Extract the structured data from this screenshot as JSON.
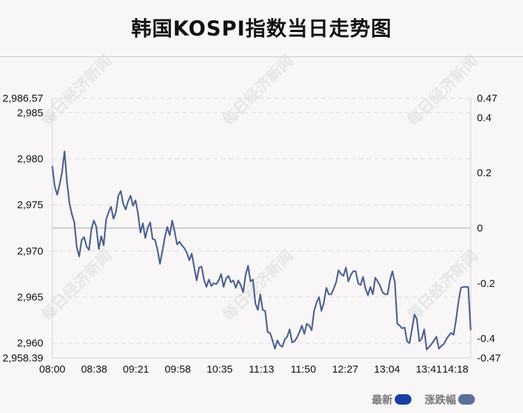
{
  "title": "韩国KOSPI指数当日走势图",
  "watermark": "每日经济新闻",
  "legend": [
    {
      "label": "最新",
      "color": "#1a3fa0"
    },
    {
      "label": "涨跌幅",
      "color": "#5b6f9c"
    }
  ],
  "chart_data": {
    "type": "line",
    "title": "韩国KOSPI指数当日走势图",
    "x_tick_labels": [
      "08:00",
      "08:38",
      "09:21",
      "09:58",
      "10:35",
      "11:13",
      "11:50",
      "12:27",
      "13:04",
      "13:41",
      "14:18"
    ],
    "y_left": {
      "max_label": "2,986.57",
      "min_label": "2,958.39",
      "ticks": [
        "2,985",
        "2,980",
        "2,975",
        "2,970",
        "2,965",
        "2,960"
      ],
      "range": [
        2958.39,
        2986.57
      ]
    },
    "y_right": {
      "max_label": "0.47",
      "min_label": "-0.47",
      "ticks": [
        "0.4",
        "0.2",
        "0",
        "-0.2",
        "-0.4"
      ],
      "range": [
        -0.47,
        0.47
      ]
    },
    "reference_value": 2972.48,
    "grid": "dashed horizontal",
    "line_color": "#4a5f8f",
    "series": [
      {
        "values": [
          2979.2,
          2977.0,
          2976.1,
          2977.2,
          2978.6,
          2980.8,
          2977.5,
          2975.2,
          2974.0,
          2973.1,
          2970.4,
          2969.4,
          2971.2,
          2971.5,
          2970.5,
          2970.1,
          2972.4,
          2973.3,
          2972.6,
          2970.2,
          2971.6,
          2970.6,
          2973.4,
          2974.2,
          2974.8,
          2973.5,
          2974.2,
          2976.0,
          2976.5,
          2975.1,
          2974.5,
          2975.4,
          2976.0,
          2974.9,
          2975.5,
          2974.1,
          2972.0,
          2973.0,
          2971.4,
          2972.5,
          2973.1,
          2971.3,
          2971.2,
          2970.1,
          2968.6,
          2970.0,
          2971.5,
          2972.6,
          2971.7,
          2973.3,
          2972.1,
          2970.7,
          2971.0,
          2970.6,
          2970.3,
          2969.8,
          2969.0,
          2969.7,
          2968.2,
          2966.8,
          2968.2,
          2968.3,
          2966.9,
          2966.1,
          2966.9,
          2966.2,
          2966.5,
          2966.4,
          2966.8,
          2967.5,
          2966.1,
          2967.0,
          2967.3,
          2966.6,
          2966.8,
          2966.0,
          2966.8,
          2966.3,
          2965.5,
          2967.4,
          2968.4,
          2966.7,
          2966.9,
          2964.3,
          2963.6,
          2965.3,
          2963.6,
          2963.5,
          2961.2,
          2961.1,
          2960.3,
          2959.4,
          2960.3,
          2959.8,
          2959.6,
          2960.4,
          2960.7,
          2961.5,
          2960.1,
          2960.2,
          2960.6,
          2961.2,
          2961.9,
          2961.0,
          2962.1,
          2961.9,
          2961.4,
          2963.5,
          2964.4,
          2965.0,
          2963.5,
          2964.4,
          2966.0,
          2965.3,
          2965.3,
          2965.9,
          2966.6,
          2967.9,
          2967.5,
          2967.3,
          2968.2,
          2966.7,
          2967.4,
          2967.8,
          2967.8,
          2966.5,
          2966.3,
          2967.2,
          2965.9,
          2965.2,
          2966.1,
          2965.3,
          2967.1,
          2966.7,
          2966.2,
          2965.5,
          2965.3,
          2965.3,
          2966.8,
          2967.8,
          2966.6,
          2962.1,
          2961.9,
          2961.6,
          2961.7,
          2960.2,
          2960.0,
          2961.5,
          2963.1,
          2962.6,
          2960.2,
          2960.5,
          2961.5,
          2959.3,
          2959.6,
          2959.9,
          2960.3,
          2960.7,
          2959.4,
          2959.7,
          2959.9,
          2960.4,
          2960.8,
          2961.1,
          2960.9,
          2962.5,
          2964.5,
          2966.0,
          2966.1,
          2966.1,
          2966.1,
          2961.4
        ]
      }
    ]
  }
}
